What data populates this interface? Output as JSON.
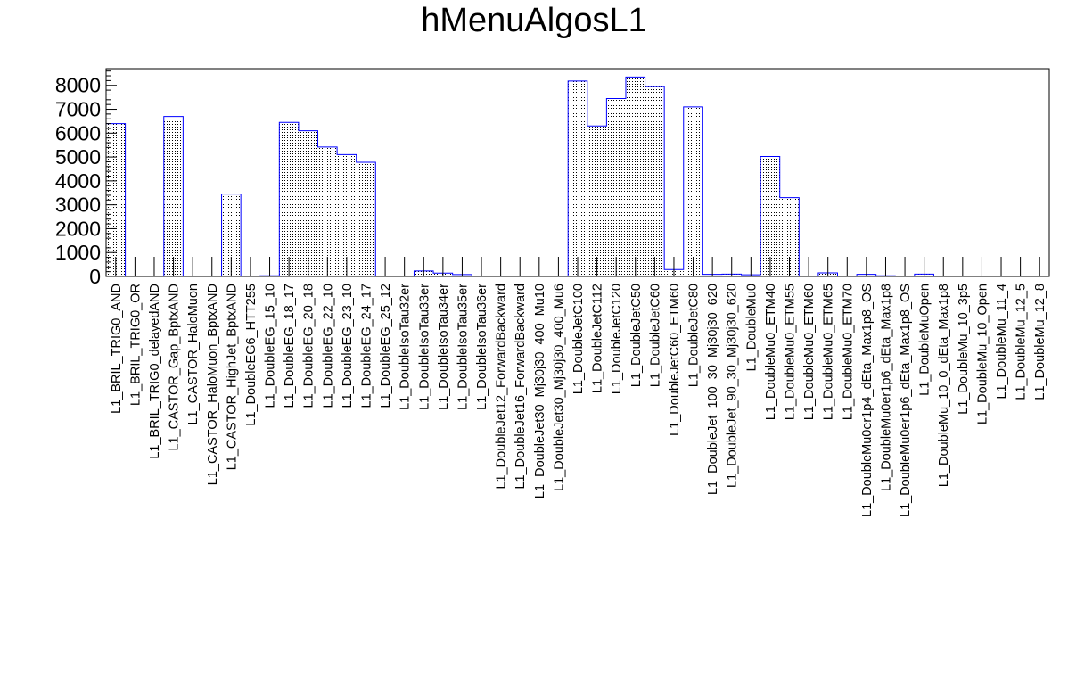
{
  "chart_data": {
    "type": "bar",
    "title": "hMenuAlgosL1",
    "xlabel": "",
    "ylabel": "",
    "ylim": [
      0,
      8700
    ],
    "yticks": [
      0,
      1000,
      2000,
      3000,
      4000,
      5000,
      6000,
      7000,
      8000
    ],
    "categories": [
      "L1_BRIL_TRIG0_AND",
      "L1_BRIL_TRIG0_OR",
      "L1_BRIL_TRIG0_delayedAND",
      "L1_CASTOR_Gap_BptxAND",
      "L1_CASTOR_HaloMuon",
      "L1_CASTOR_HaloMuon_BptxAND",
      "L1_CASTOR_HighJet_BptxAND",
      "L1_DoubleEG6_HTT255",
      "L1_DoubleEG_15_10",
      "L1_DoubleEG_18_17",
      "L1_DoubleEG_20_18",
      "L1_DoubleEG_22_10",
      "L1_DoubleEG_23_10",
      "L1_DoubleEG_24_17",
      "L1_DoubleEG_25_12",
      "L1_DoubleIsoTau32er",
      "L1_DoubleIsoTau33er",
      "L1_DoubleIsoTau34er",
      "L1_DoubleIsoTau35er",
      "L1_DoubleIsoTau36er",
      "L1_DoubleJet12_ForwardBackward",
      "L1_DoubleJet16_ForwardBackward",
      "L1_DoubleJet30_Mj30j30_400_Mu10",
      "L1_DoubleJet30_Mj30j30_400_Mu6",
      "L1_DoubleJetC100",
      "L1_DoubleJetC112",
      "L1_DoubleJetC120",
      "L1_DoubleJetC50",
      "L1_DoubleJetC60",
      "L1_DoubleJetC60_ETM60",
      "L1_DoubleJetC80",
      "L1_DoubleJet_100_30_Mj30j30_620",
      "L1_DoubleJet_90_30_Mj30j30_620",
      "L1_DoubleMu0",
      "L1_DoubleMu0_ETM40",
      "L1_DoubleMu0_ETM55",
      "L1_DoubleMu0_ETM60",
      "L1_DoubleMu0_ETM65",
      "L1_DoubleMu0_ETM70",
      "L1_DoubleMu0er1p4_dEta_Max1p8_OS",
      "L1_DoubleMu0er1p6_dEta_Max1p8",
      "L1_DoubleMu0er1p6_dEta_Max1p8_OS",
      "L1_DoubleMuOpen",
      "L1_DoubleMu_10_0_dEta_Max1p8",
      "L1_DoubleMu_10_3p5",
      "L1_DoubleMu_10_Open",
      "L1_DoubleMu_11_4",
      "L1_DoubleMu_12_5",
      "L1_DoubleMu_12_8"
    ],
    "values": [
      6400,
      0,
      0,
      6700,
      0,
      0,
      3450,
      0,
      30,
      6450,
      6100,
      5420,
      5100,
      4780,
      20,
      0,
      230,
      140,
      80,
      0,
      0,
      0,
      0,
      0,
      8180,
      6300,
      7450,
      8350,
      7950,
      290,
      7100,
      90,
      100,
      70,
      5020,
      3300,
      0,
      150,
      20,
      90,
      30,
      0,
      100,
      0,
      0,
      0,
      0,
      0,
      0
    ],
    "legend": "none",
    "grid": false,
    "fill_pattern": "dotted",
    "colors": {
      "line": "#0000ff",
      "axis": "#000000",
      "fill_dot": "#000000"
    }
  }
}
